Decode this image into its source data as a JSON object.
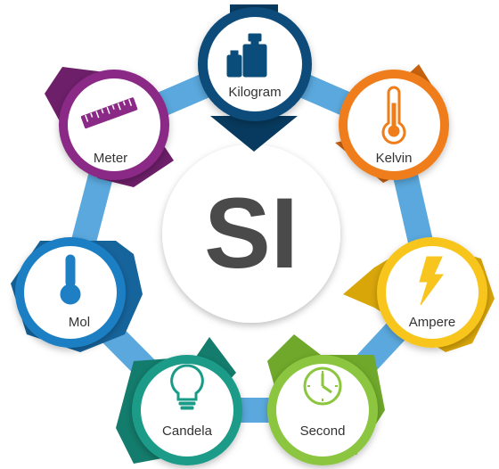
{
  "center": {
    "label": "SI"
  },
  "ring_color": "#5aa8dd",
  "units": [
    {
      "id": "kilogram",
      "label": "Kilogram",
      "icon": "weights-icon",
      "color": "#0a4c7a",
      "color_dark": "#073a5e"
    },
    {
      "id": "kelvin",
      "label": "Kelvin",
      "icon": "thermometer-icon",
      "color": "#ef7d1a",
      "color_dark": "#c8620e"
    },
    {
      "id": "ampere",
      "label": "Ampere",
      "icon": "lightning-icon",
      "color": "#f7c51e",
      "color_dark": "#d9a60a"
    },
    {
      "id": "second",
      "label": "Second",
      "icon": "clock-icon",
      "color": "#8cc63f",
      "color_dark": "#6fa82a"
    },
    {
      "id": "candela",
      "label": "Candela",
      "icon": "lightbulb-icon",
      "color": "#1a9b88",
      "color_dark": "#137c6c"
    },
    {
      "id": "mol",
      "label": "Mol",
      "icon": "flask-icon",
      "color": "#1f7fc4",
      "color_dark": "#16649c"
    },
    {
      "id": "meter",
      "label": "Meter",
      "icon": "ruler-icon",
      "color": "#8b2a86",
      "color_dark": "#6d1f69"
    }
  ]
}
